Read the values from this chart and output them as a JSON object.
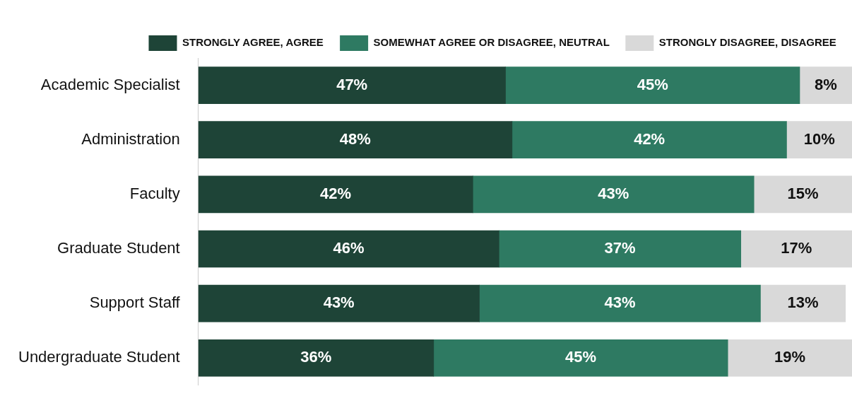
{
  "chart_data": {
    "type": "bar",
    "orientation": "horizontal",
    "stacked": true,
    "categories": [
      "Academic Specialist",
      "Administration",
      "Faculty",
      "Graduate Student",
      "Support Staff",
      "Undergraduate Student"
    ],
    "series": [
      {
        "name": "STRONGLY AGREE, AGREE",
        "color": "#1e4437",
        "values": [
          47,
          48,
          42,
          46,
          43,
          36
        ],
        "value_labels": [
          "47%",
          "48%",
          "42%",
          "46%",
          "43%",
          "36%"
        ]
      },
      {
        "name": "SOMEWHAT AGREE OR DISAGREE, NEUTRAL",
        "color": "#2e7a62",
        "values": [
          45,
          42,
          43,
          37,
          43,
          45
        ],
        "value_labels": [
          "45%",
          "42%",
          "43%",
          "37%",
          "43%",
          "45%"
        ]
      },
      {
        "name": "STRONGLY DISAGREE, DISAGREE",
        "color": "#d9d9d9",
        "values": [
          8,
          10,
          15,
          17,
          13,
          19
        ],
        "value_labels": [
          "8%",
          "10%",
          "15%",
          "17%",
          "13%",
          "19%"
        ]
      }
    ],
    "tick_labels": "y",
    "grid": false,
    "legend": "top"
  }
}
